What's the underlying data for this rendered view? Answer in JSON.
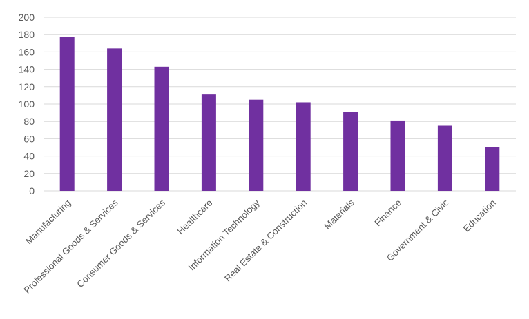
{
  "chart_data": {
    "type": "bar",
    "categories": [
      "Manufacturing",
      "Professional Goods & Services",
      "Consumer Goods & Services",
      "Healthcare",
      "Information Technology",
      "Real Estate & Construction",
      "Materials",
      "Finance",
      "Government & Civic",
      "Education"
    ],
    "values": [
      177,
      164,
      143,
      111,
      105,
      102,
      91,
      81,
      75,
      50
    ],
    "ylim": [
      0,
      200
    ],
    "yticks": [
      0,
      20,
      40,
      60,
      80,
      100,
      120,
      140,
      160,
      180,
      200
    ],
    "grid": true,
    "bar_color": "#7030a0",
    "title": "",
    "xlabel": "",
    "ylabel": ""
  }
}
